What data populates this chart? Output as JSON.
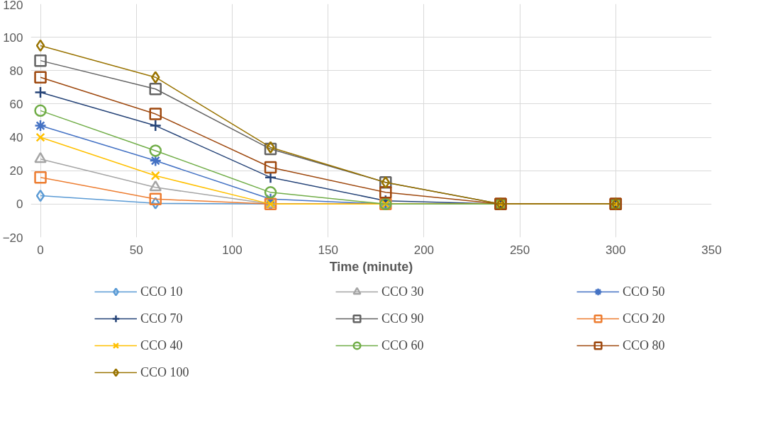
{
  "chart_data": {
    "type": "line",
    "xlabel": "Time (minute)",
    "x": [
      0,
      60,
      120,
      180,
      240,
      300
    ],
    "xlim": [
      -5,
      350
    ],
    "xticks": [
      0,
      50,
      100,
      150,
      200,
      250,
      300,
      350
    ],
    "ylim": [
      -20,
      120
    ],
    "yticks": [
      -20,
      0,
      20,
      40,
      60,
      80,
      100,
      120
    ],
    "grid": true,
    "legend": "bottom",
    "series": [
      {
        "name": "CCO 10",
        "color": "#5b9bd5",
        "marker": "diamond",
        "values": [
          5,
          0.5,
          0,
          0,
          0,
          0
        ]
      },
      {
        "name": "CCO 30",
        "color": "#a5a5a5",
        "marker": "triangle",
        "values": [
          27,
          10,
          0,
          0,
          0,
          0
        ]
      },
      {
        "name": "CCO 50",
        "color": "#4472c4",
        "marker": "cross",
        "values": [
          47,
          26,
          3,
          0,
          0,
          0
        ]
      },
      {
        "name": "CCO 70",
        "color": "#264478",
        "marker": "plus",
        "values": [
          67,
          47,
          16,
          2,
          0,
          0
        ]
      },
      {
        "name": "CCO 90",
        "color": "#636363",
        "marker": "square",
        "values": [
          86,
          69,
          33,
          13,
          0,
          0
        ]
      },
      {
        "name": "CCO 20",
        "color": "#ed7d31",
        "marker": "square",
        "values": [
          16,
          3,
          0,
          0,
          0,
          0
        ]
      },
      {
        "name": "CCO 40",
        "color": "#ffc000",
        "marker": "x",
        "values": [
          40,
          17,
          0,
          0,
          0,
          0
        ]
      },
      {
        "name": "CCO 60",
        "color": "#70ad47",
        "marker": "circle",
        "values": [
          56,
          32,
          7,
          0,
          0,
          0
        ]
      },
      {
        "name": "CCO 80",
        "color": "#9e480e",
        "marker": "square",
        "values": [
          76,
          54,
          22,
          7,
          0,
          0
        ]
      },
      {
        "name": "CCO 100",
        "color": "#997300",
        "marker": "diamond",
        "values": [
          95,
          76,
          34,
          13,
          0,
          0
        ]
      }
    ]
  }
}
